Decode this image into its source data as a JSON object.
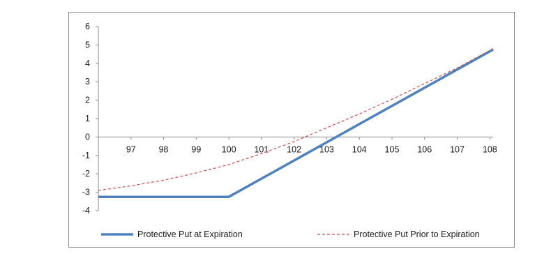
{
  "chart_data": {
    "type": "line",
    "title": "",
    "xlabel": "",
    "ylabel": "",
    "xlim": [
      96,
      108.1
    ],
    "ylim": [
      -4,
      6
    ],
    "x_ticks": [
      "97",
      "98",
      "99",
      "100",
      "101",
      "102",
      "103",
      "104",
      "105",
      "106",
      "107",
      "108"
    ],
    "y_ticks": [
      "6",
      "5",
      "4",
      "3",
      "2",
      "1",
      "0",
      "-1",
      "-2",
      "-3",
      "-4"
    ],
    "legend_position": "bottom",
    "grid": false,
    "series": [
      {
        "name": "Protective Put at Expiration",
        "color": "#4f81bd",
        "style": "solid",
        "x": [
          96,
          100,
          108.1
        ],
        "y": [
          -3.25,
          -3.25,
          4.75
        ]
      },
      {
        "name": "Protective Put Prior to Expiration",
        "color": "#c0504d",
        "style": "dashed",
        "x": [
          96,
          97,
          98,
          99,
          100,
          101,
          102,
          103,
          104,
          105,
          106,
          107,
          108.1
        ],
        "y": [
          -2.9,
          -2.65,
          -2.35,
          -1.95,
          -1.5,
          -0.9,
          -0.25,
          0.5,
          1.25,
          2.05,
          2.9,
          3.75,
          4.8
        ]
      }
    ]
  }
}
